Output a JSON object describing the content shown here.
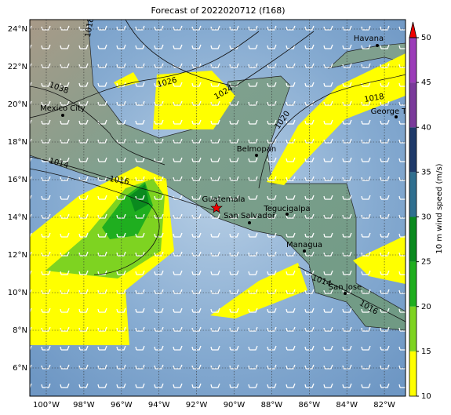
{
  "title": "Forecast of 2022020712 (f168)",
  "lon_labels": [
    "100°W",
    "98°W",
    "96°W",
    "94°W",
    "92°W",
    "90°W",
    "88°W",
    "86°W",
    "84°W",
    "82°W"
  ],
  "lat_labels": [
    "6°N",
    "8°N",
    "10°N",
    "12°N",
    "14°N",
    "16°N",
    "18°N",
    "20°N",
    "22°N",
    "24°N"
  ],
  "cities": [
    "Havana",
    "George Town",
    "Mexico City",
    "Belmopan",
    "Guatemala",
    "San Salvador",
    "Tegucigalpa",
    "Managua",
    "San Jose"
  ],
  "contour_labels": [
    "1038",
    "1026",
    "1024",
    "1020",
    "1018",
    "1014",
    "1016",
    "1014",
    "1016",
    "1018"
  ],
  "colorbar": {
    "label": "10 m wind speed (m/s)",
    "ticks": [
      10,
      15,
      20,
      25,
      30,
      35,
      40,
      45,
      50
    ],
    "colors": [
      "#ffff00",
      "#7ed321",
      "#1fae1f",
      "#0a8a1e",
      "#2f6f8f",
      "#1f3a6a",
      "#7a3a9a",
      "#9b3cb8"
    ],
    "over_color": "#ee0000"
  }
}
